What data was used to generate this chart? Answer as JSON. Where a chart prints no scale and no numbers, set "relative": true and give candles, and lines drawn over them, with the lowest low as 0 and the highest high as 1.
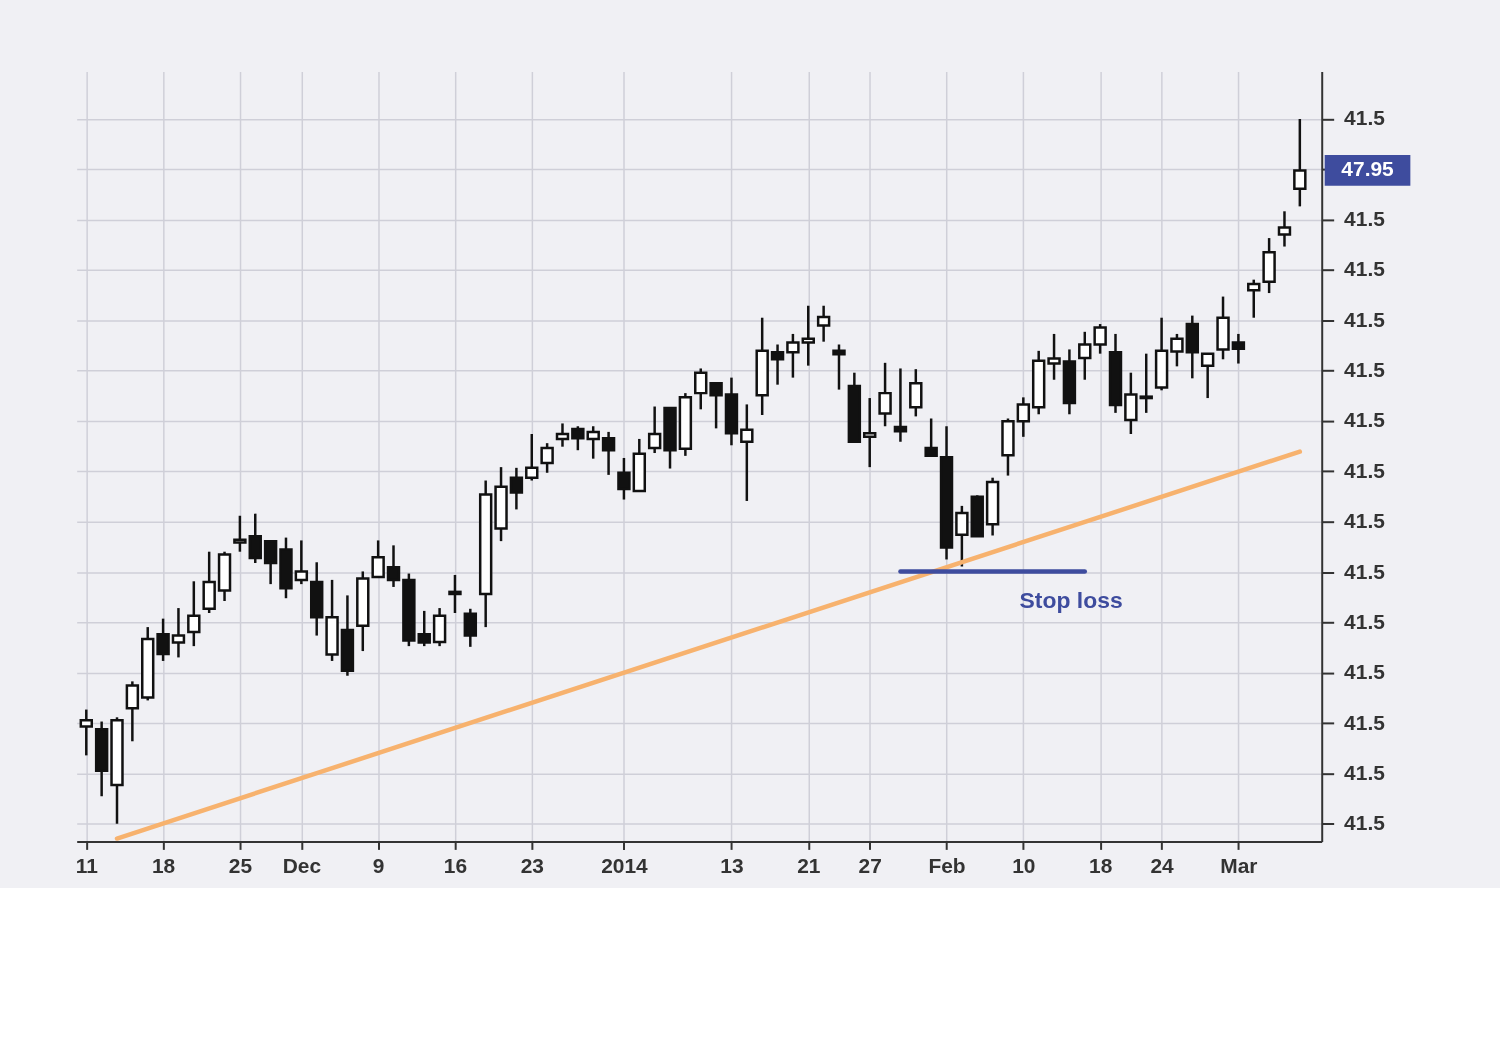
{
  "chart_data": {
    "type": "candlestick",
    "relative": true,
    "grid": true,
    "categories": [
      "11",
      null,
      null,
      null,
      null,
      "18",
      null,
      null,
      null,
      null,
      "25",
      null,
      null,
      null,
      "Dec",
      null,
      null,
      null,
      null,
      "9",
      null,
      null,
      null,
      null,
      "16",
      null,
      null,
      null,
      null,
      "23",
      null,
      null,
      null,
      null,
      null,
      "2014",
      null,
      null,
      null,
      null,
      null,
      null,
      "13",
      null,
      null,
      null,
      null,
      "21",
      null,
      null,
      null,
      "27",
      null,
      null,
      null,
      null,
      "Feb",
      null,
      null,
      null,
      null,
      "10",
      null,
      null,
      null,
      null,
      "18",
      null,
      null,
      null,
      "24",
      null,
      null,
      null,
      null,
      "Mar",
      null,
      null,
      null,
      null
    ],
    "ohlc": [
      [
        0.138,
        0.162,
        0.097,
        0.147
      ],
      [
        0.134,
        0.145,
        0.039,
        0.075
      ],
      [
        0.055,
        0.151,
        0,
        0.147
      ],
      [
        0.164,
        0.202,
        0.117,
        0.196
      ],
      [
        0.179,
        0.279,
        0.175,
        0.262
      ],
      [
        0.269,
        0.291,
        0.231,
        0.241
      ],
      [
        0.257,
        0.306,
        0.236,
        0.267
      ],
      [
        0.272,
        0.344,
        0.252,
        0.295
      ],
      [
        0.305,
        0.386,
        0.299,
        0.343
      ],
      [
        0.331,
        0.386,
        0.316,
        0.382
      ],
      [
        0.399,
        0.437,
        0.386,
        0.403
      ],
      [
        0.408,
        0.44,
        0.37,
        0.377
      ],
      [
        0.401,
        0.401,
        0.34,
        0.37
      ],
      [
        0.389,
        0.406,
        0.32,
        0.334
      ],
      [
        0.346,
        0.402,
        0.34,
        0.358
      ],
      [
        0.343,
        0.371,
        0.267,
        0.293
      ],
      [
        0.24,
        0.346,
        0.231,
        0.293
      ],
      [
        0.275,
        0.324,
        0.21,
        0.217
      ],
      [
        0.281,
        0.358,
        0.245,
        0.348
      ],
      [
        0.35,
        0.402,
        0.35,
        0.378
      ],
      [
        0.364,
        0.395,
        0.336,
        0.346
      ],
      [
        0.346,
        0.355,
        0.252,
        0.26
      ],
      [
        0.269,
        0.302,
        0.252,
        0.257
      ],
      [
        0.258,
        0.306,
        0.252,
        0.295
      ],
      [
        0.329,
        0.353,
        0.299,
        0.326
      ],
      [
        0.298,
        0.305,
        0.251,
        0.267
      ],
      [
        0.326,
        0.487,
        0.279,
        0.467
      ],
      [
        0.419,
        0.506,
        0.401,
        0.478
      ],
      [
        0.491,
        0.505,
        0.446,
        0.47
      ],
      [
        0.491,
        0.553,
        0.487,
        0.505
      ],
      [
        0.512,
        0.54,
        0.498,
        0.533
      ],
      [
        0.546,
        0.568,
        0.535,
        0.553
      ],
      [
        0.56,
        0.564,
        0.53,
        0.547
      ],
      [
        0.546,
        0.564,
        0.518,
        0.556
      ],
      [
        0.547,
        0.556,
        0.495,
        0.53
      ],
      [
        0.498,
        0.519,
        0.46,
        0.475
      ],
      [
        0.472,
        0.546,
        0.472,
        0.525
      ],
      [
        0.533,
        0.592,
        0.526,
        0.553
      ],
      [
        0.59,
        0.59,
        0.504,
        0.53
      ],
      [
        0.532,
        0.611,
        0.522,
        0.605
      ],
      [
        0.611,
        0.646,
        0.588,
        0.64
      ],
      [
        0.625,
        0.625,
        0.561,
        0.608
      ],
      [
        0.609,
        0.633,
        0.537,
        0.554
      ],
      [
        0.542,
        0.595,
        0.458,
        0.559
      ],
      [
        0.608,
        0.718,
        0.58,
        0.671
      ],
      [
        0.669,
        0.68,
        0.623,
        0.659
      ],
      [
        0.669,
        0.695,
        0.633,
        0.683
      ],
      [
        0.683,
        0.735,
        0.65,
        0.688
      ],
      [
        0.707,
        0.735,
        0.684,
        0.719
      ],
      [
        0.671,
        0.68,
        0.616,
        0.666
      ],
      [
        0.621,
        0.64,
        0.542,
        0.542
      ],
      [
        0.549,
        0.604,
        0.506,
        0.554
      ],
      [
        0.582,
        0.654,
        0.564,
        0.611
      ],
      [
        0.563,
        0.646,
        0.542,
        0.557
      ],
      [
        0.591,
        0.645,
        0.578,
        0.625
      ],
      [
        0.533,
        0.575,
        0.522,
        0.522
      ],
      [
        0.52,
        0.564,
        0.375,
        0.392
      ],
      [
        0.41,
        0.451,
        0.365,
        0.441
      ],
      [
        0.464,
        0.466,
        0.408,
        0.408
      ],
      [
        0.425,
        0.491,
        0.409,
        0.485
      ],
      [
        0.523,
        0.575,
        0.494,
        0.571
      ],
      [
        0.571,
        0.605,
        0.549,
        0.595
      ],
      [
        0.591,
        0.671,
        0.581,
        0.657
      ],
      [
        0.653,
        0.695,
        0.63,
        0.66
      ],
      [
        0.656,
        0.673,
        0.581,
        0.597
      ],
      [
        0.661,
        0.698,
        0.63,
        0.68
      ],
      [
        0.68,
        0.709,
        0.667,
        0.704
      ],
      [
        0.669,
        0.695,
        0.583,
        0.594
      ],
      [
        0.573,
        0.64,
        0.553,
        0.609
      ],
      [
        0.604,
        0.667,
        0.583,
        0.606
      ],
      [
        0.619,
        0.718,
        0.615,
        0.671
      ],
      [
        0.67,
        0.695,
        0.649,
        0.688
      ],
      [
        0.709,
        0.721,
        0.632,
        0.669
      ],
      [
        0.65,
        0.667,
        0.604,
        0.667
      ],
      [
        0.673,
        0.748,
        0.659,
        0.718
      ],
      [
        0.683,
        0.695,
        0.653,
        0.674
      ],
      [
        0.757,
        0.772,
        0.718,
        0.766
      ],
      [
        0.769,
        0.831,
        0.753,
        0.811
      ],
      [
        0.836,
        0.869,
        0.819,
        0.846
      ],
      [
        0.901,
        1.0,
        0.876,
        0.927
      ]
    ],
    "series": [
      {
        "type": "line",
        "color": "#f7b26e",
        "values": [
          null,
          null,
          -0.021,
          null,
          null,
          null,
          null,
          null,
          null,
          null,
          null,
          null,
          null,
          null,
          null,
          null,
          null,
          null,
          null,
          null,
          null,
          null,
          null,
          null,
          null,
          null,
          null,
          null,
          null,
          null,
          null,
          null,
          null,
          null,
          null,
          null,
          null,
          null,
          null,
          null,
          null,
          null,
          null,
          null,
          null,
          null,
          null,
          null,
          null,
          null,
          null,
          null,
          null,
          null,
          null,
          null,
          null,
          null,
          null,
          null,
          null,
          null,
          null,
          null,
          null,
          null,
          null,
          null,
          null,
          null,
          null,
          null,
          null,
          null,
          null,
          null,
          null,
          null,
          null,
          0.528
        ]
      },
      {
        "type": "line",
        "name": "Stop loss",
        "color": "#3e4c9e",
        "values": [
          null,
          null,
          null,
          null,
          null,
          null,
          null,
          null,
          null,
          null,
          null,
          null,
          null,
          null,
          null,
          null,
          null,
          null,
          null,
          null,
          null,
          null,
          null,
          null,
          null,
          null,
          null,
          null,
          null,
          null,
          null,
          null,
          null,
          null,
          null,
          null,
          null,
          null,
          null,
          null,
          null,
          null,
          null,
          null,
          null,
          null,
          null,
          null,
          null,
          null,
          null,
          null,
          null,
          0.358,
          null,
          null,
          null,
          null,
          null,
          null,
          null,
          null,
          null,
          null,
          null,
          0.358,
          null,
          null,
          null,
          null,
          null,
          null,
          null,
          null,
          null,
          null,
          null,
          null,
          null,
          null
        ]
      }
    ],
    "annotations": [
      "47.95",
      "41.5",
      "41.5",
      "41.5",
      "41.5",
      "41.5",
      "41.5",
      "41.5",
      "41.5",
      "41.5",
      "41.5",
      "41.5",
      "41.5",
      "41.5",
      "41.5"
    ]
  }
}
